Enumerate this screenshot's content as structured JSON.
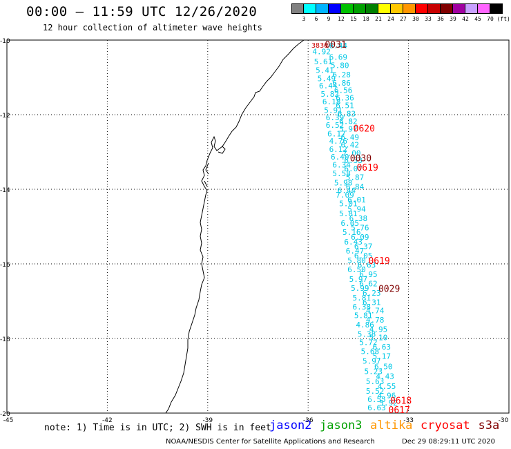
{
  "header": {
    "title": "00:00 – 11:59 UTC 12/26/2020",
    "subtitle": "12 hour collection of altimeter wave heights"
  },
  "legend": {
    "colors": [
      "#808080",
      "#00ffff",
      "#00b4ff",
      "#0000ff",
      "#00c000",
      "#00a000",
      "#008000",
      "#ffff00",
      "#ffc800",
      "#ff9600",
      "#ff0000",
      "#c80000",
      "#800000",
      "#a000a0",
      "#c8a0ff",
      "#ff64ff",
      "#000000"
    ],
    "labels": [
      "3",
      "6",
      "9",
      "12",
      "15",
      "18",
      "21",
      "24",
      "27",
      "30",
      "33",
      "36",
      "39",
      "42",
      "45",
      "70 (ft)"
    ]
  },
  "map": {
    "lon_ticks": [
      "-45",
      "-42",
      "-39",
      "-36",
      "-33",
      "-30"
    ],
    "lat_ticks": [
      "-10",
      "-12",
      "-14",
      "-16",
      "-18",
      "-20"
    ],
    "lon_range": [
      -45,
      -30
    ],
    "lat_range": [
      -20,
      -10
    ]
  },
  "chart_data": {
    "type": "scatter",
    "swh_values": [
      {
        "lat": -10.22,
        "lon": -35.1,
        "v": "6.44"
      },
      {
        "lat": -10.38,
        "lon": -35.6,
        "v": "4.92"
      },
      {
        "lat": -10.53,
        "lon": -35.1,
        "v": "6.69"
      },
      {
        "lat": -10.65,
        "lon": -35.55,
        "v": "5.61"
      },
      {
        "lat": -10.75,
        "lon": -35.05,
        "v": "5.80"
      },
      {
        "lat": -10.88,
        "lon": -35.5,
        "v": "5.41"
      },
      {
        "lat": -11.0,
        "lon": -35.0,
        "v": "6.28"
      },
      {
        "lat": -11.1,
        "lon": -35.45,
        "v": "5.49"
      },
      {
        "lat": -11.22,
        "lon": -35.0,
        "v": "6.86"
      },
      {
        "lat": -11.3,
        "lon": -35.4,
        "v": "6.44"
      },
      {
        "lat": -11.42,
        "lon": -34.95,
        "v": "6.56"
      },
      {
        "lat": -11.52,
        "lon": -35.35,
        "v": "5.82"
      },
      {
        "lat": -11.62,
        "lon": -34.9,
        "v": "6.36"
      },
      {
        "lat": -11.72,
        "lon": -35.3,
        "v": "6.18"
      },
      {
        "lat": -11.82,
        "lon": -34.9,
        "v": "6.51"
      },
      {
        "lat": -11.95,
        "lon": -35.25,
        "v": "5.91"
      },
      {
        "lat": -12.05,
        "lon": -34.85,
        "v": "6.83"
      },
      {
        "lat": -12.15,
        "lon": -35.2,
        "v": "6.39"
      },
      {
        "lat": -12.25,
        "lon": -34.8,
        "v": "6.82"
      },
      {
        "lat": -12.35,
        "lon": -35.2,
        "v": "6.52"
      },
      {
        "lat": -12.45,
        "lon": -34.8,
        "v": "5.97"
      },
      {
        "lat": -12.58,
        "lon": -35.15,
        "v": "6.17"
      },
      {
        "lat": -12.68,
        "lon": -34.75,
        "v": "6.49"
      },
      {
        "lat": -12.78,
        "lon": -35.1,
        "v": "4.76"
      },
      {
        "lat": -12.88,
        "lon": -34.75,
        "v": "6.42"
      },
      {
        "lat": -13.0,
        "lon": -35.1,
        "v": "6.12"
      },
      {
        "lat": -13.1,
        "lon": -34.7,
        "v": "7.00"
      },
      {
        "lat": -13.2,
        "lon": -35.05,
        "v": "6.40"
      },
      {
        "lat": -13.3,
        "lon": -34.65,
        "v": "6.33"
      },
      {
        "lat": -13.42,
        "lon": -35.0,
        "v": "6.34"
      },
      {
        "lat": -13.52,
        "lon": -34.65,
        "v": "6.07"
      },
      {
        "lat": -13.65,
        "lon": -35.0,
        "v": "5.58"
      },
      {
        "lat": -13.75,
        "lon": -34.6,
        "v": "5.87"
      },
      {
        "lat": -13.9,
        "lon": -34.95,
        "v": "5.98"
      },
      {
        "lat": -14.0,
        "lon": -34.6,
        "v": "6.84"
      },
      {
        "lat": -14.1,
        "lon": -34.85,
        "v": "6.44"
      },
      {
        "lat": -14.22,
        "lon": -34.9,
        "v": "7.09"
      },
      {
        "lat": -14.35,
        "lon": -34.55,
        "v": "6.01"
      },
      {
        "lat": -14.45,
        "lon": -34.8,
        "v": "5.01"
      },
      {
        "lat": -14.6,
        "lon": -34.55,
        "v": "5.94"
      },
      {
        "lat": -14.72,
        "lon": -34.8,
        "v": "5.81"
      },
      {
        "lat": -14.85,
        "lon": -34.5,
        "v": "6.38"
      },
      {
        "lat": -14.98,
        "lon": -34.75,
        "v": "6.05"
      },
      {
        "lat": -15.1,
        "lon": -34.45,
        "v": "5.76"
      },
      {
        "lat": -15.22,
        "lon": -34.7,
        "v": "5.16"
      },
      {
        "lat": -15.35,
        "lon": -34.45,
        "v": "6.09"
      },
      {
        "lat": -15.48,
        "lon": -34.65,
        "v": "6.43"
      },
      {
        "lat": -15.6,
        "lon": -34.35,
        "v": "6.37"
      },
      {
        "lat": -15.72,
        "lon": -34.6,
        "v": "6.47"
      },
      {
        "lat": -15.85,
        "lon": -34.35,
        "v": "6.05"
      },
      {
        "lat": -15.98,
        "lon": -34.55,
        "v": "5.80"
      },
      {
        "lat": -16.1,
        "lon": -34.25,
        "v": "6.63"
      },
      {
        "lat": -16.22,
        "lon": -34.55,
        "v": "6.50"
      },
      {
        "lat": -16.35,
        "lon": -34.2,
        "v": "6.95"
      },
      {
        "lat": -16.48,
        "lon": -34.5,
        "v": "5.97"
      },
      {
        "lat": -16.6,
        "lon": -34.2,
        "v": "6.62"
      },
      {
        "lat": -16.72,
        "lon": -34.45,
        "v": "5.99"
      },
      {
        "lat": -16.85,
        "lon": -34.1,
        "v": "6.23"
      },
      {
        "lat": -16.98,
        "lon": -34.4,
        "v": "5.81"
      },
      {
        "lat": -17.1,
        "lon": -34.1,
        "v": "6.31"
      },
      {
        "lat": -17.22,
        "lon": -34.4,
        "v": "6.38"
      },
      {
        "lat": -17.32,
        "lon": -34.0,
        "v": "4.74"
      },
      {
        "lat": -17.45,
        "lon": -34.35,
        "v": "5.81"
      },
      {
        "lat": -17.57,
        "lon": -34.0,
        "v": "4.78"
      },
      {
        "lat": -17.7,
        "lon": -34.3,
        "v": "4.86"
      },
      {
        "lat": -17.82,
        "lon": -33.9,
        "v": "4.95"
      },
      {
        "lat": -17.95,
        "lon": -34.25,
        "v": "5.38"
      },
      {
        "lat": -18.05,
        "lon": -33.9,
        "v": "5.10"
      },
      {
        "lat": -18.18,
        "lon": -34.2,
        "v": "5.72"
      },
      {
        "lat": -18.3,
        "lon": -33.8,
        "v": "6.63"
      },
      {
        "lat": -18.42,
        "lon": -34.15,
        "v": "5.68"
      },
      {
        "lat": -18.55,
        "lon": -33.8,
        "v": "5.17"
      },
      {
        "lat": -18.68,
        "lon": -34.1,
        "v": "5.97"
      },
      {
        "lat": -18.82,
        "lon": -33.75,
        "v": "6.50"
      },
      {
        "lat": -18.95,
        "lon": -34.05,
        "v": "5.23"
      },
      {
        "lat": -19.08,
        "lon": -33.7,
        "v": "4.43"
      },
      {
        "lat": -19.22,
        "lon": -34.0,
        "v": "5.63"
      },
      {
        "lat": -19.35,
        "lon": -33.65,
        "v": "4.55"
      },
      {
        "lat": -19.48,
        "lon": -34.0,
        "v": "5.52"
      },
      {
        "lat": -19.6,
        "lon": -33.65,
        "v": "4.96"
      },
      {
        "lat": -19.7,
        "lon": -33.95,
        "v": "6.55"
      },
      {
        "lat": -19.8,
        "lon": -33.6,
        "v": "5.92"
      },
      {
        "lat": -19.93,
        "lon": -33.95,
        "v": "6.63"
      }
    ],
    "time_labels": [
      {
        "lat": -10.2,
        "lon": -35.9,
        "v": "3836",
        "color": "#c80000"
      },
      {
        "lat": -10.2,
        "lon": -35.5,
        "v": "0031",
        "color": "#800000"
      },
      {
        "lat": -12.45,
        "lon": -34.65,
        "v": "0620",
        "color": "#ff0000"
      },
      {
        "lat": -13.25,
        "lon": -34.75,
        "v": "0030",
        "color": "#800000"
      },
      {
        "lat": -13.5,
        "lon": -34.55,
        "v": "0619",
        "color": "#ff0000"
      },
      {
        "lat": -16.0,
        "lon": -34.2,
        "v": "0619",
        "color": "#ff0000"
      },
      {
        "lat": -16.75,
        "lon": -33.9,
        "v": "0029",
        "color": "#800000"
      },
      {
        "lat": -19.75,
        "lon": -33.55,
        "v": "0618",
        "color": "#ff0000"
      },
      {
        "lat": -20.0,
        "lon": -33.6,
        "v": "0617",
        "color": "#ff0000"
      }
    ]
  },
  "footer": {
    "note": "note: 1) Time is in UTC; 2) SWH is in feet",
    "satellites": [
      {
        "name": "jason2",
        "color": "#0000ff"
      },
      {
        "name": "jason3",
        "color": "#00a000"
      },
      {
        "name": "altika",
        "color": "#ff9600"
      },
      {
        "name": "cryosat",
        "color": "#ff0000"
      },
      {
        "name": "s3a",
        "color": "#800000"
      }
    ],
    "credit": "NOAA/NESDIS Center for Satellite Applications and Research",
    "generated": "Dec 29 08:29:11 UTC 2020"
  }
}
